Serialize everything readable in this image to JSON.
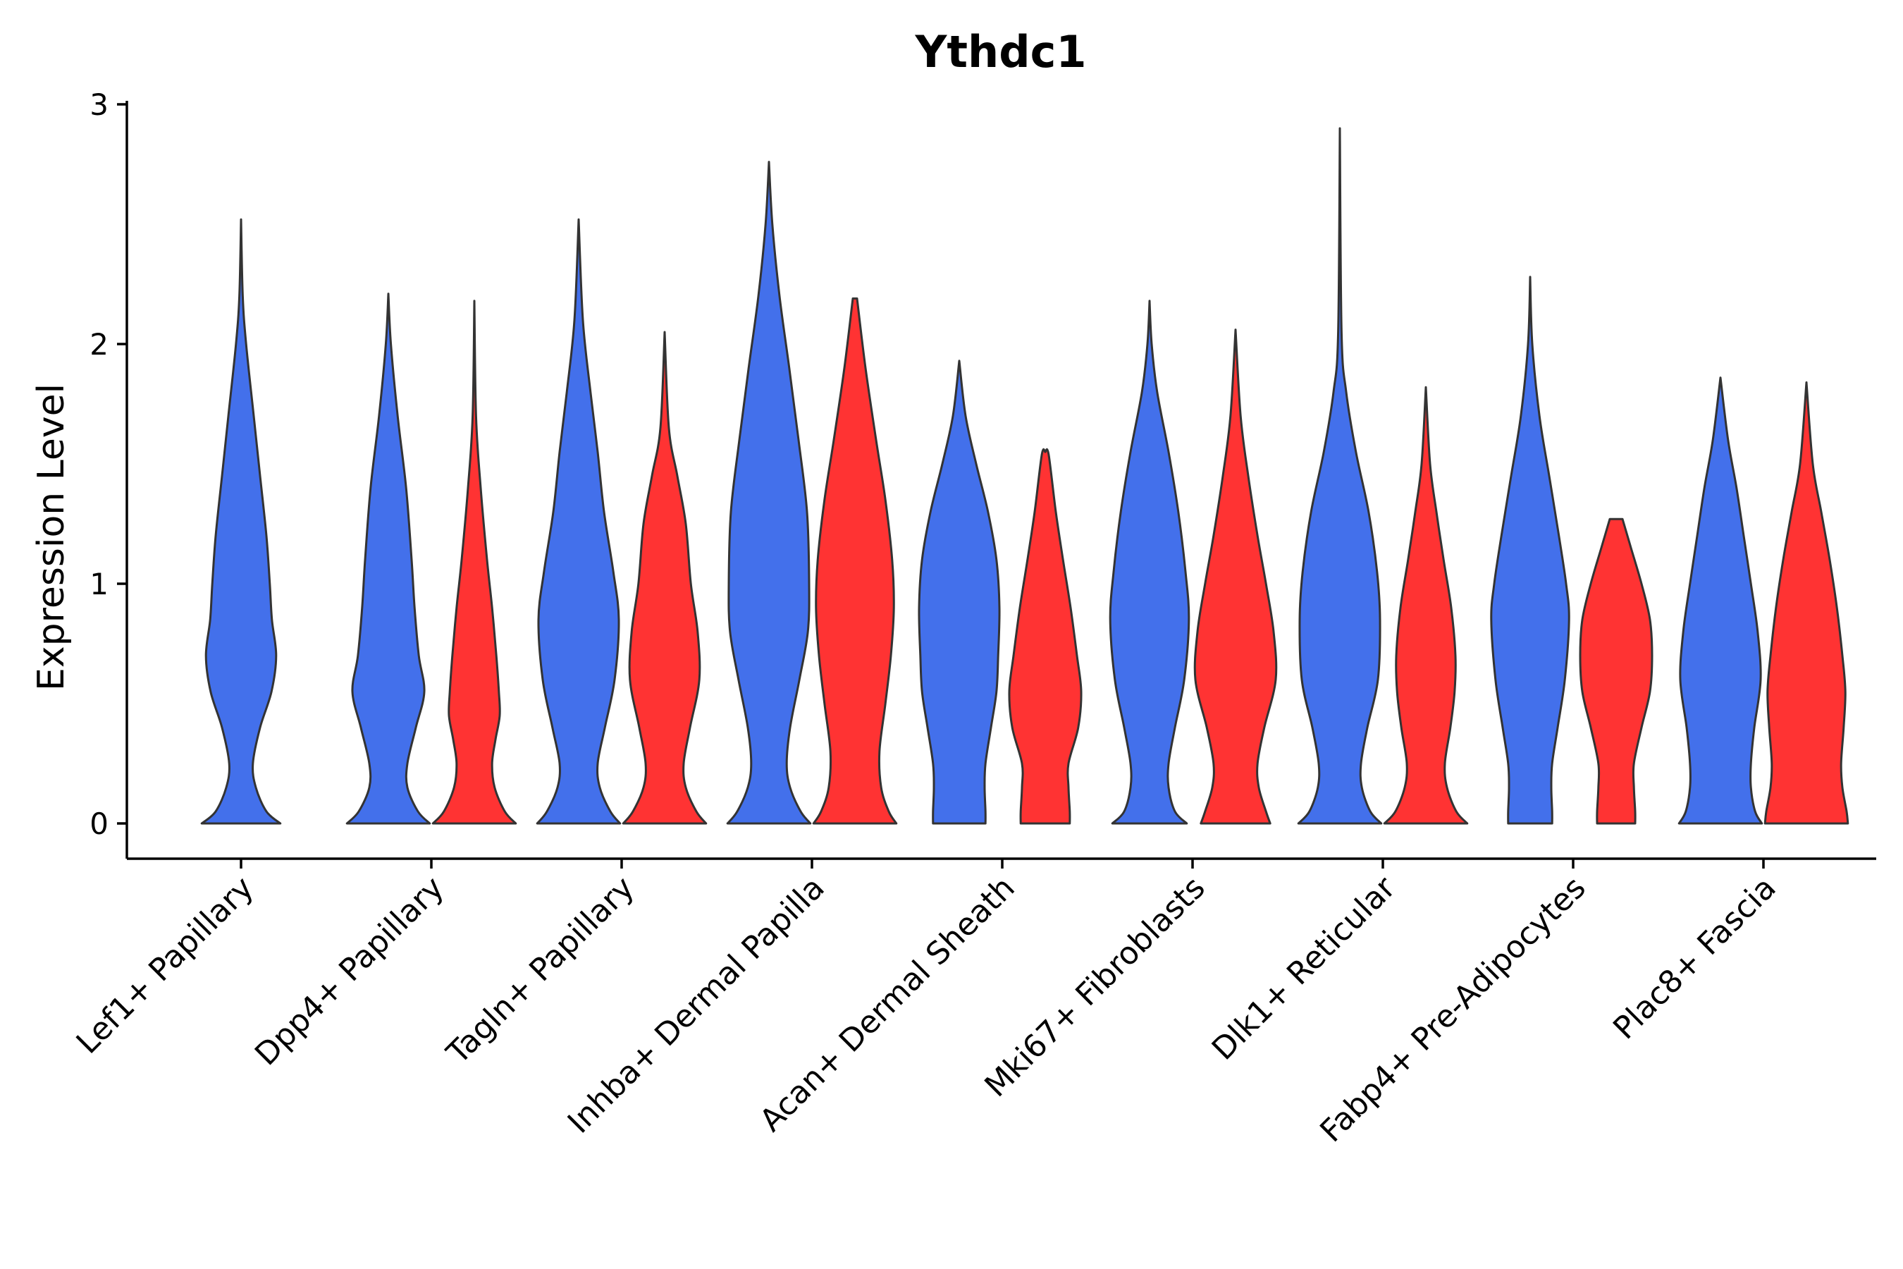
{
  "chart_data": {
    "type": "violin",
    "title": "Ythdc1",
    "xlabel": "",
    "ylabel": "Expression Level",
    "ylim": [
      -0.15,
      3.05
    ],
    "yticks": [
      0,
      1,
      2,
      3
    ],
    "colors": {
      "group1": "#4370EB",
      "group2": "#FF3333",
      "outline": "#333333"
    },
    "categories": [
      "Lef1+ Papillary",
      "Dpp4+ Papillary",
      "Tagln+ Papillary",
      "Inhba+ Dermal Papilla",
      "Acan+ Dermal Sheath",
      "Mki67+ Fibroblasts",
      "Dlk1+ Reticular",
      "Fabp4+ Pre-Adipocytes",
      "Plac8+ Fascia"
    ],
    "series": [
      {
        "name": "group1",
        "color": "#4370EB",
        "violins": [
          {
            "category": "Lef1+ Papillary",
            "max": 2.52,
            "profile": [
              [
                0,
                0.93
              ],
              [
                0.05,
                0.6
              ],
              [
                0.15,
                0.35
              ],
              [
                0.25,
                0.28
              ],
              [
                0.4,
                0.45
              ],
              [
                0.55,
                0.72
              ],
              [
                0.7,
                0.83
              ],
              [
                0.85,
                0.73
              ],
              [
                1.0,
                0.68
              ],
              [
                1.2,
                0.6
              ],
              [
                1.45,
                0.45
              ],
              [
                1.7,
                0.3
              ],
              [
                2.0,
                0.12
              ],
              [
                2.2,
                0.04
              ],
              [
                2.52,
                0
              ]
            ]
          },
          {
            "category": "Dpp4+ Papillary",
            "max": 2.21,
            "profile": [
              [
                0,
                0.98
              ],
              [
                0.05,
                0.7
              ],
              [
                0.15,
                0.45
              ],
              [
                0.25,
                0.45
              ],
              [
                0.4,
                0.65
              ],
              [
                0.55,
                0.85
              ],
              [
                0.7,
                0.72
              ],
              [
                0.9,
                0.62
              ],
              [
                1.1,
                0.55
              ],
              [
                1.4,
                0.42
              ],
              [
                1.7,
                0.22
              ],
              [
                2.0,
                0.06
              ],
              [
                2.21,
                0
              ]
            ]
          },
          {
            "category": "Tagln+ Papillary",
            "max": 2.52,
            "profile": [
              [
                0,
                0.98
              ],
              [
                0.05,
                0.75
              ],
              [
                0.15,
                0.5
              ],
              [
                0.25,
                0.45
              ],
              [
                0.4,
                0.62
              ],
              [
                0.6,
                0.85
              ],
              [
                0.85,
                0.95
              ],
              [
                1.05,
                0.82
              ],
              [
                1.3,
                0.6
              ],
              [
                1.55,
                0.45
              ],
              [
                1.8,
                0.28
              ],
              [
                2.1,
                0.1
              ],
              [
                2.52,
                0
              ]
            ]
          },
          {
            "category": "Inhba+ Dermal Papilla",
            "max": 2.76,
            "profile": [
              [
                0,
                0.98
              ],
              [
                0.05,
                0.75
              ],
              [
                0.15,
                0.5
              ],
              [
                0.25,
                0.42
              ],
              [
                0.4,
                0.5
              ],
              [
                0.6,
                0.72
              ],
              [
                0.8,
                0.92
              ],
              [
                1.0,
                0.95
              ],
              [
                1.3,
                0.9
              ],
              [
                1.6,
                0.7
              ],
              [
                1.9,
                0.48
              ],
              [
                2.2,
                0.25
              ],
              [
                2.5,
                0.08
              ],
              [
                2.76,
                0
              ]
            ]
          },
          {
            "category": "Acan+ Dermal Sheath",
            "max": 1.93,
            "profile": [
              [
                0,
                0.62
              ],
              [
                0.05,
                0.62
              ],
              [
                0.15,
                0.6
              ],
              [
                0.25,
                0.62
              ],
              [
                0.4,
                0.75
              ],
              [
                0.55,
                0.88
              ],
              [
                0.7,
                0.92
              ],
              [
                0.9,
                0.95
              ],
              [
                1.1,
                0.88
              ],
              [
                1.3,
                0.68
              ],
              [
                1.5,
                0.4
              ],
              [
                1.7,
                0.15
              ],
              [
                1.93,
                0
              ]
            ]
          },
          {
            "category": "Mki67+ Fibroblasts",
            "max": 2.18,
            "profile": [
              [
                0,
                0.88
              ],
              [
                0.05,
                0.6
              ],
              [
                0.15,
                0.45
              ],
              [
                0.25,
                0.45
              ],
              [
                0.4,
                0.6
              ],
              [
                0.6,
                0.82
              ],
              [
                0.85,
                0.93
              ],
              [
                1.05,
                0.85
              ],
              [
                1.3,
                0.68
              ],
              [
                1.55,
                0.45
              ],
              [
                1.8,
                0.18
              ],
              [
                2.0,
                0.05
              ],
              [
                2.18,
                0
              ]
            ]
          },
          {
            "category": "Dlk1+ Reticular",
            "max": 2.9,
            "profile": [
              [
                0,
                0.98
              ],
              [
                0.05,
                0.72
              ],
              [
                0.15,
                0.52
              ],
              [
                0.25,
                0.5
              ],
              [
                0.4,
                0.65
              ],
              [
                0.6,
                0.9
              ],
              [
                0.85,
                0.95
              ],
              [
                1.05,
                0.88
              ],
              [
                1.3,
                0.68
              ],
              [
                1.55,
                0.38
              ],
              [
                1.8,
                0.15
              ],
              [
                2.05,
                0.04
              ],
              [
                2.9,
                0
              ]
            ]
          },
          {
            "category": "Fabp4+ Pre-Adipocytes",
            "max": 2.28,
            "profile": [
              [
                0,
                0.52
              ],
              [
                0.05,
                0.52
              ],
              [
                0.15,
                0.5
              ],
              [
                0.25,
                0.52
              ],
              [
                0.4,
                0.65
              ],
              [
                0.6,
                0.82
              ],
              [
                0.85,
                0.92
              ],
              [
                1.0,
                0.85
              ],
              [
                1.2,
                0.68
              ],
              [
                1.45,
                0.45
              ],
              [
                1.7,
                0.22
              ],
              [
                2.0,
                0.05
              ],
              [
                2.28,
                0
              ]
            ]
          },
          {
            "category": "Plac8+ Fascia",
            "max": 1.86,
            "profile": [
              [
                0,
                0.98
              ],
              [
                0.05,
                0.82
              ],
              [
                0.15,
                0.72
              ],
              [
                0.25,
                0.72
              ],
              [
                0.4,
                0.8
              ],
              [
                0.6,
                0.95
              ],
              [
                0.8,
                0.88
              ],
              [
                1.0,
                0.72
              ],
              [
                1.2,
                0.55
              ],
              [
                1.4,
                0.38
              ],
              [
                1.6,
                0.18
              ],
              [
                1.86,
                0
              ]
            ]
          }
        ]
      },
      {
        "name": "group2",
        "color": "#FF3333",
        "violins": [
          {
            "category": "Dpp4+ Papillary",
            "max": 2.18,
            "profile": [
              [
                0,
                0.98
              ],
              [
                0.05,
                0.72
              ],
              [
                0.15,
                0.48
              ],
              [
                0.25,
                0.42
              ],
              [
                0.35,
                0.5
              ],
              [
                0.45,
                0.6
              ],
              [
                0.55,
                0.58
              ],
              [
                0.7,
                0.52
              ],
              [
                0.9,
                0.42
              ],
              [
                1.1,
                0.3
              ],
              [
                1.4,
                0.15
              ],
              [
                1.7,
                0.04
              ],
              [
                2.18,
                0
              ]
            ]
          },
          {
            "category": "Tagln+ Papillary",
            "max": 2.05,
            "profile": [
              [
                0,
                0.98
              ],
              [
                0.05,
                0.75
              ],
              [
                0.15,
                0.5
              ],
              [
                0.25,
                0.45
              ],
              [
                0.4,
                0.6
              ],
              [
                0.6,
                0.82
              ],
              [
                0.8,
                0.78
              ],
              [
                1.0,
                0.62
              ],
              [
                1.25,
                0.5
              ],
              [
                1.45,
                0.3
              ],
              [
                1.65,
                0.1
              ],
              [
                2.05,
                0
              ]
            ]
          },
          {
            "category": "Inhba+ Dermal Papilla",
            "max": 2.19,
            "profile": [
              [
                0,
                0.98
              ],
              [
                0.05,
                0.8
              ],
              [
                0.15,
                0.62
              ],
              [
                0.3,
                0.58
              ],
              [
                0.5,
                0.72
              ],
              [
                0.7,
                0.85
              ],
              [
                0.9,
                0.92
              ],
              [
                1.1,
                0.88
              ],
              [
                1.35,
                0.72
              ],
              [
                1.6,
                0.5
              ],
              [
                1.9,
                0.25
              ],
              [
                2.19,
                0.05
              ]
            ]
          },
          {
            "category": "Acan+ Dermal Sheath",
            "max": 1.55,
            "profile": [
              [
                0,
                0.58
              ],
              [
                0.05,
                0.58
              ],
              [
                0.15,
                0.55
              ],
              [
                0.25,
                0.55
              ],
              [
                0.4,
                0.78
              ],
              [
                0.55,
                0.85
              ],
              [
                0.7,
                0.75
              ],
              [
                0.9,
                0.6
              ],
              [
                1.1,
                0.42
              ],
              [
                1.3,
                0.25
              ],
              [
                1.54,
                0.08
              ],
              [
                1.55,
                0
              ]
            ]
          },
          {
            "category": "Mki67+ Fibroblasts",
            "max": 2.06,
            "profile": [
              [
                0,
                0.82
              ],
              [
                0.05,
                0.72
              ],
              [
                0.15,
                0.55
              ],
              [
                0.25,
                0.52
              ],
              [
                0.4,
                0.68
              ],
              [
                0.6,
                0.95
              ],
              [
                0.8,
                0.9
              ],
              [
                1.0,
                0.72
              ],
              [
                1.2,
                0.52
              ],
              [
                1.45,
                0.3
              ],
              [
                1.7,
                0.12
              ],
              [
                2.06,
                0
              ]
            ]
          },
          {
            "category": "Dlk1+ Reticular",
            "max": 1.82,
            "profile": [
              [
                0,
                0.98
              ],
              [
                0.05,
                0.72
              ],
              [
                0.15,
                0.5
              ],
              [
                0.25,
                0.45
              ],
              [
                0.4,
                0.58
              ],
              [
                0.55,
                0.68
              ],
              [
                0.7,
                0.7
              ],
              [
                0.9,
                0.6
              ],
              [
                1.1,
                0.42
              ],
              [
                1.3,
                0.25
              ],
              [
                1.5,
                0.1
              ],
              [
                1.82,
                0
              ]
            ]
          },
          {
            "category": "Fabp4+ Pre-Adipocytes",
            "max": 1.27,
            "profile": [
              [
                0,
                0.45
              ],
              [
                0.05,
                0.45
              ],
              [
                0.15,
                0.42
              ],
              [
                0.25,
                0.42
              ],
              [
                0.4,
                0.6
              ],
              [
                0.55,
                0.8
              ],
              [
                0.7,
                0.85
              ],
              [
                0.85,
                0.8
              ],
              [
                1.0,
                0.6
              ],
              [
                1.15,
                0.35
              ],
              [
                1.27,
                0.15
              ]
            ]
          },
          {
            "category": "Plac8+ Fascia",
            "max": 1.84,
            "profile": [
              [
                0,
                0.98
              ],
              [
                0.05,
                0.95
              ],
              [
                0.15,
                0.85
              ],
              [
                0.25,
                0.82
              ],
              [
                0.4,
                0.88
              ],
              [
                0.55,
                0.92
              ],
              [
                0.7,
                0.85
              ],
              [
                0.9,
                0.72
              ],
              [
                1.1,
                0.55
              ],
              [
                1.3,
                0.35
              ],
              [
                1.5,
                0.15
              ],
              [
                1.84,
                0
              ]
            ]
          }
        ]
      }
    ]
  }
}
